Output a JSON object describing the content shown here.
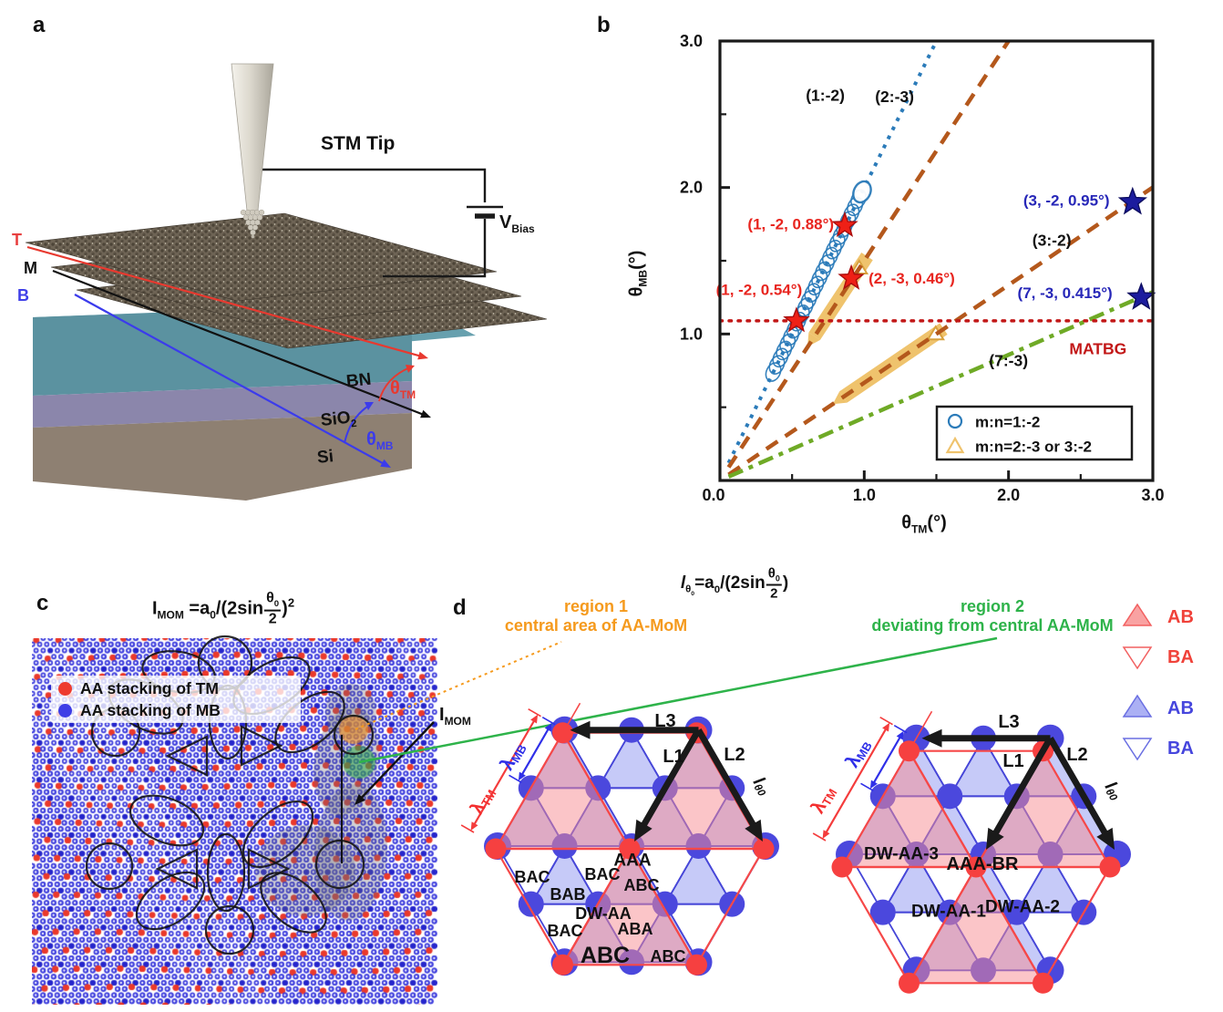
{
  "panels": {
    "a": {
      "label": "a",
      "stm_tip": "STM Tip",
      "v": "V",
      "v_sub": "Bias",
      "t": "T",
      "m": "M",
      "b": "B",
      "bn": "BN",
      "sio": "SiO",
      "sio_sub": "2",
      "si": "Si",
      "theta": "θ",
      "tm_sub": "TM",
      "mb_sub": "MB"
    },
    "b": {
      "label": "b",
      "chart_data": {
        "type": "line",
        "xlabel": {
          "sym": "θ",
          "sub": "TM",
          "unit": "(°)"
        },
        "ylabel": {
          "sym": "θ",
          "sub": "MB",
          "unit": "(°)"
        },
        "xlim": [
          0,
          3
        ],
        "ylim": [
          0,
          3
        ],
        "xticks": [
          {
            "v": 0,
            "label": "0.0"
          },
          {
            "v": 1,
            "label": "1.0"
          },
          {
            "v": 2,
            "label": "2.0"
          },
          {
            "v": 3,
            "label": "3.0"
          }
        ],
        "yticks": [
          {
            "v": 1,
            "label": "1.0"
          },
          {
            "v": 2,
            "label": "2.0"
          },
          {
            "v": 3,
            "label": "3.0"
          }
        ],
        "minor_ticks": [
          0.5,
          1.5,
          2.5
        ],
        "lines": [
          {
            "label": "(1:-2)",
            "slope": 2,
            "intercept": 0,
            "style": "dotted",
            "color": "#2b7bb9",
            "label_color": "#111111",
            "label_pos": [
              0.73,
              2.63
            ],
            "x_range": [
              0.06,
              1.52
            ]
          },
          {
            "label": "(2:-3)",
            "slope": 1.5,
            "intercept": 0,
            "style": "dashed",
            "color": "#b4581c",
            "label_color": "#111111",
            "label_pos": [
              1.21,
              2.62
            ],
            "x_range": [
              0.06,
              2.02
            ]
          },
          {
            "label": "(3:-2)",
            "slope": 0.667,
            "intercept": 0,
            "style": "dashed",
            "color": "#b4581c",
            "label_color": "#111111",
            "label_pos": [
              2.3,
              1.64
            ],
            "x_range": [
              0.06,
              3.0
            ]
          },
          {
            "label": "(7:-3)",
            "slope": 0.429,
            "intercept": 0,
            "style": "dashdot",
            "color": "#6faa26",
            "label_color": "#111111",
            "label_pos": [
              2.0,
              0.82
            ],
            "x_range": [
              0.06,
              3.0
            ]
          },
          {
            "label": "MATBG",
            "slope": 0,
            "intercept": 1.09,
            "style": "dotted-fine",
            "color": "#c21717",
            "label_color": "#c21717",
            "label_pos": [
              2.62,
              0.9
            ],
            "x_range": [
              0.0,
              3.0
            ]
          }
        ],
        "ellipse_chain": {
          "slope": 2,
          "x_start": 0.37,
          "x_end": 0.985,
          "count": 26,
          "color": "#2b7bb9"
        },
        "bands": [
          {
            "x1": 0.655,
            "y1": 0.985,
            "x2": 1.02,
            "y2": 1.53,
            "marker": [
              0.965,
              1.45
            ]
          },
          {
            "x1": 0.855,
            "y1": 0.57,
            "x2": 1.55,
            "y2": 1.035,
            "marker": [
              1.495,
              1.0
            ]
          }
        ],
        "band_color": "#efc36d",
        "stars": [
          {
            "x": 0.53,
            "y": 1.09,
            "color": "red",
            "label": "(1, -2, 0.54°)",
            "label_pos": [
              0.57,
              1.3
            ],
            "anchor": "end"
          },
          {
            "x": 0.865,
            "y": 1.74,
            "color": "red",
            "label": "(1, -2, 0.88°)",
            "label_pos": [
              0.79,
              1.75
            ],
            "anchor": "end"
          },
          {
            "x": 0.91,
            "y": 1.38,
            "color": "red",
            "label": "(2, -3, 0.46°)",
            "label_pos": [
              1.03,
              1.38
            ],
            "anchor": "start"
          },
          {
            "x": 2.86,
            "y": 1.9,
            "color": "blue",
            "label": "(3, -2, 0.95°)",
            "label_pos": [
              2.7,
              1.91
            ],
            "anchor": "end"
          },
          {
            "x": 2.92,
            "y": 1.25,
            "color": "blue",
            "label": "(7, -3, 0.415°)",
            "label_pos": [
              2.72,
              1.28
            ],
            "anchor": "end"
          }
        ],
        "star_colors": {
          "red": {
            "fill": "#ee2016",
            "stroke": "#a90d0d",
            "text": "#e8251f"
          },
          "blue": {
            "fill": "#1c1c9e",
            "stroke": "#0d0d60",
            "text": "#2727b8"
          }
        },
        "legend": [
          {
            "marker": "circle",
            "color": "#2b7bb9",
            "label": "m:n=1:-2"
          },
          {
            "marker": "triangle",
            "color": "#efc36d",
            "label": "m:n=2:-3 or 3:-2"
          }
        ]
      }
    },
    "c": {
      "label": "c",
      "formula": {
        "lhs": "I",
        "lhs_sub": "MOM",
        "eq": "=a",
        "a_sub": "0",
        "sin": "/(2sin",
        "num": "θ",
        "num_sub": "0",
        "den": "2",
        "close": ")",
        "sup": "2"
      },
      "legend": [
        {
          "label": "AA stacking of TM",
          "color": "#ee3b2e"
        },
        {
          "label": "AA stacking of MB",
          "color": "#3d3de6"
        }
      ],
      "imom": "I",
      "imom_sub": "MOM",
      "colors": {
        "blue_dot": "#3d3ddd",
        "red_dot": "#ea392b",
        "orange_hl": "rgba(246,146,30,0.6)",
        "green_hl": "rgba(44,165,70,0.55)"
      }
    },
    "d": {
      "label": "d",
      "formula": {
        "lhs": "l",
        "lhs_sub": "θ",
        "lhs_sub2": "0",
        "eq": "=a",
        "a_sub": "0",
        "sin": "/(2sin",
        "num": "θ",
        "num_sub": "0",
        "den": "2",
        "close": ")"
      },
      "region1": {
        "line1": "region 1",
        "line2": "central area of AA-MoM",
        "color": "#f59a1d"
      },
      "region2": {
        "line1": "region 2",
        "line2": "deviating from central AA-MoM",
        "color": "#2eb34a"
      },
      "left_hex_labels": [
        "AAA",
        "BAC",
        "BAC",
        "BAB",
        "ABC",
        "DW-AA",
        "BAC",
        "ABA",
        "ABC",
        "ABC"
      ],
      "right_hex_labels": [
        "DW-AA-3",
        "AAA-BR",
        "DW-AA-1",
        "DW-AA-2"
      ],
      "vectors": {
        "l1": "L1",
        "l2": "L2",
        "l3": "L3",
        "lt": "l",
        "lt_sub": "θ",
        "lt_sub2": "0"
      },
      "lambda": {
        "sym": "λ",
        "mb": "MB",
        "tm": "TM",
        "mb_color": "#2f2fe8",
        "tm_color": "#f32f2f"
      },
      "tri_legend": [
        {
          "label": "AB",
          "shape": "up",
          "scheme": "red"
        },
        {
          "label": "BA",
          "shape": "down",
          "scheme": "red"
        },
        {
          "label": "AB",
          "shape": "up",
          "scheme": "blue"
        },
        {
          "label": "BA",
          "shape": "down",
          "scheme": "blue"
        }
      ]
    }
  }
}
